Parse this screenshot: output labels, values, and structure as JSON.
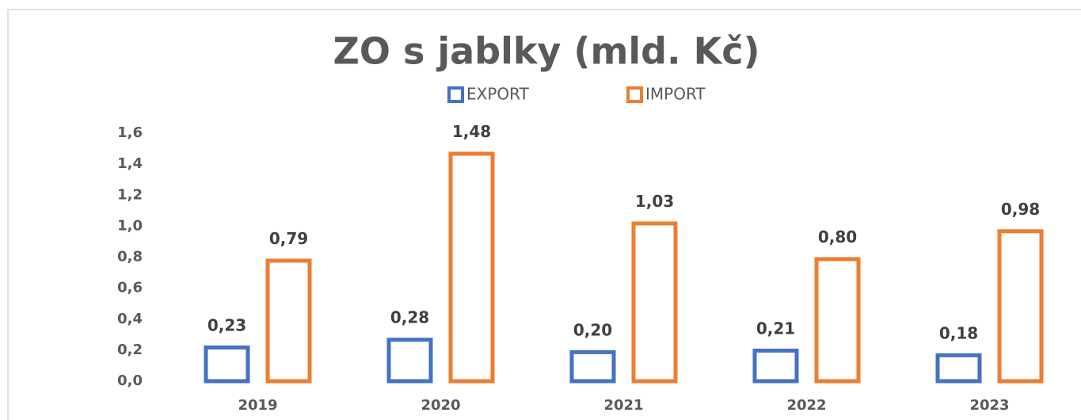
{
  "chart_data": {
    "type": "bar",
    "title": "ZO s jablky (mld. Kč)",
    "categories": [
      "2019",
      "2020",
      "2021",
      "2022",
      "2023"
    ],
    "series": [
      {
        "name": "EXPORT",
        "color": "#4472c4",
        "values": [
          0.23,
          0.28,
          0.2,
          0.21,
          0.18
        ],
        "value_labels": [
          "0,23",
          "0,28",
          "0,20",
          "0,21",
          "0,18"
        ]
      },
      {
        "name": "IMPORT",
        "color": "#ed7d31",
        "values": [
          0.79,
          1.48,
          1.03,
          0.8,
          0.98
        ],
        "value_labels": [
          "0,79",
          "1,48",
          "1,03",
          "0,80",
          "0,98"
        ]
      }
    ],
    "ylim": [
      0,
      1.6
    ],
    "yticks": [
      {
        "value": 0,
        "label": "0,0"
      },
      {
        "value": 0.2,
        "label": "0,2"
      },
      {
        "value": 0.4,
        "label": "0,4"
      },
      {
        "value": 0.6,
        "label": "0,6"
      },
      {
        "value": 0.8,
        "label": "0,8"
      },
      {
        "value": 1.0,
        "label": "1,0"
      },
      {
        "value": 1.2,
        "label": "1,2"
      },
      {
        "value": 1.4,
        "label": "1,4"
      },
      {
        "value": 1.6,
        "label": "1,6"
      }
    ],
    "grid": false,
    "legend": "top"
  }
}
